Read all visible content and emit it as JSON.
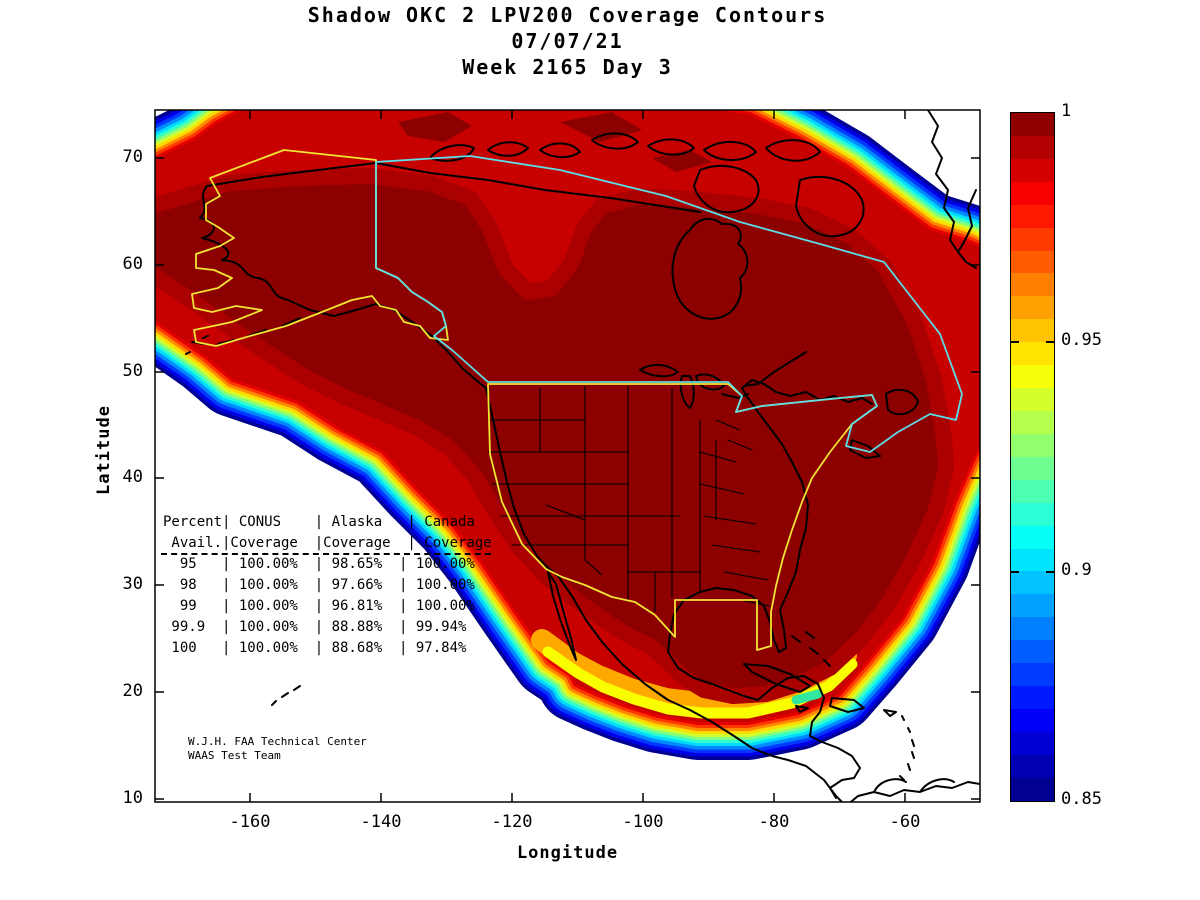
{
  "title": {
    "line1": "Shadow OKC 2 LPV200 Coverage Contours",
    "line2": "07/07/21",
    "line3": "Week 2165 Day 3"
  },
  "axes": {
    "xlabel": "Longitude",
    "ylabel": "Latitude",
    "x_tick_labels": [
      "-160",
      "-140",
      "-120",
      "-100",
      "-80",
      "-60"
    ],
    "y_tick_labels": [
      "70",
      "60",
      "50",
      "40",
      "30",
      "20",
      "10"
    ]
  },
  "colorbar": {
    "tick_labels": [
      "1",
      "0.95",
      "0.9",
      "0.85"
    ],
    "tick_values": [
      1,
      0.95,
      0.9,
      0.85
    ],
    "max": 1.0,
    "min": 0.85,
    "colormap": "jet",
    "top_color": "#800000",
    "bottom_color": "#000090"
  },
  "coverage_table": {
    "lines": [
      "Percent| CONUS    | Alaska   | Canada",
      " Avail.|Coverage  |Coverage  | Coverage",
      "  95   | 100.00%  | 98.65%  | 100.00%",
      "  98   | 100.00%  | 97.66%  | 100.00%",
      "  99   | 100.00%  | 96.81%  | 100.00%",
      " 99.9  | 100.00%  | 88.88%  | 99.94%",
      " 100   | 100.00%  | 88.68%  | 97.84%"
    ]
  },
  "credit": {
    "line1": "W.J.H. FAA Technical Center",
    "line2": "WAAS Test Team"
  },
  "map_colors": {
    "max_coverage_region": "#8C0000",
    "conus_outline": "#F2E434",
    "alaska_outline": "#F2E434",
    "canada_outline": "#5CDDE8",
    "coastline": "#000000"
  },
  "chart_data": {
    "type": "heatmap",
    "subtype": "filled-contour-map",
    "title": "Shadow OKC 2 LPV200 Coverage Contours",
    "subtitle": [
      "07/07/21",
      "Week 2165 Day 3"
    ],
    "xlabel": "Longitude",
    "ylabel": "Latitude",
    "xlim": [
      -175,
      -48
    ],
    "ylim": [
      10,
      75
    ],
    "x_ticks": [
      -160,
      -140,
      -120,
      -100,
      -80,
      -60
    ],
    "y_ticks": [
      70,
      60,
      50,
      40,
      30,
      20,
      10
    ],
    "colorbar": {
      "min": 0.85,
      "max": 1.0,
      "ticks": [
        1,
        0.95,
        0.9,
        0.85
      ],
      "colormap": "jet",
      "band_step": 0.005
    },
    "description": "LPV200 availability coverage contours over North America. Dark red interior = availability 1.0 covering CONUS, Alaska and Canada; concentric jet-colormap fringe bands decrease to 0.85 (dark blue) at the outer boundary; white = below 0.85. CONUS and Alaska regions outlined in yellow, Canada in cyan; coastlines and US state borders in black.",
    "coverage_table": {
      "columns": [
        "Percent Avail.",
        "CONUS Coverage",
        "Alaska Coverage",
        "Canada Coverage"
      ],
      "rows": [
        [
          "95",
          "100.00%",
          "98.65%",
          "100.00%"
        ],
        [
          "98",
          "100.00%",
          "97.66%",
          "100.00%"
        ],
        [
          "99",
          "100.00%",
          "96.81%",
          "100.00%"
        ],
        [
          "99.9",
          "100.00%",
          "88.88%",
          "99.94%"
        ],
        [
          "100",
          "100.00%",
          "88.68%",
          "97.84%"
        ]
      ]
    },
    "annotations": [
      "W.J.H. FAA Technical Center",
      "WAAS Test Team"
    ],
    "legend_position": "right-colorbar",
    "grid": false
  }
}
